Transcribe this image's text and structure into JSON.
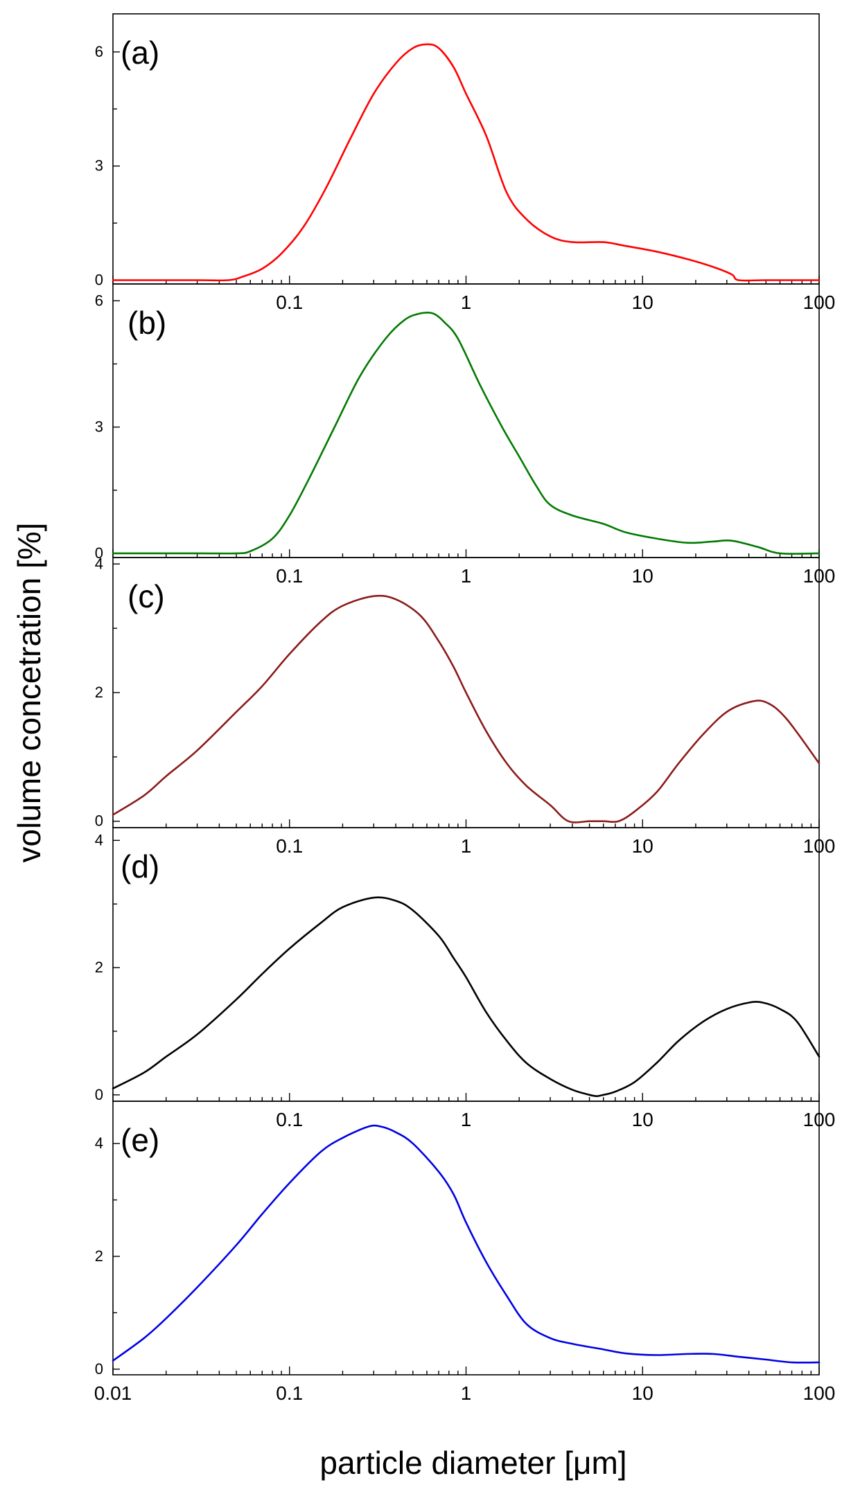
{
  "chart_data": {
    "type": "line",
    "xlabel": "particle diameter [μm]",
    "ylabel": "volume concetration [%]",
    "xscale": "log",
    "xlim": [
      0.01,
      100
    ],
    "x_tick_labels": [
      "0.01",
      "0.1",
      "1",
      "10",
      "100"
    ],
    "panels": [
      {
        "label": "(a)",
        "color": "#ff0000",
        "ylim": [
          -0.1,
          7.0
        ],
        "y_ticks": [
          0,
          3,
          6
        ],
        "y_tick_labels": [
          "0",
          "3",
          "6"
        ],
        "x_tick_labels": [
          "0.1",
          "1",
          "10",
          "100"
        ],
        "x": [
          0.01,
          0.03,
          0.045,
          0.055,
          0.07,
          0.09,
          0.12,
          0.16,
          0.22,
          0.3,
          0.4,
          0.5,
          0.6,
          0.7,
          0.85,
          1.0,
          1.3,
          1.7,
          2.2,
          3.0,
          4.0,
          6.0,
          8.0,
          12.0,
          18.0,
          25.0,
          32.0,
          35.0,
          50.0,
          100.0
        ],
        "y": [
          0,
          0,
          0,
          0.1,
          0.3,
          0.7,
          1.4,
          2.4,
          3.7,
          4.9,
          5.7,
          6.1,
          6.2,
          6.1,
          5.6,
          4.9,
          3.8,
          2.3,
          1.6,
          1.15,
          1.0,
          1.0,
          0.9,
          0.75,
          0.55,
          0.35,
          0.15,
          0,
          0,
          0
        ]
      },
      {
        "label": "(b)",
        "color": "#007a00",
        "ylim": [
          -0.1,
          6.4
        ],
        "y_ticks": [
          0,
          3,
          6
        ],
        "y_tick_labels": [
          "0",
          "3",
          "6"
        ],
        "x_tick_labels": [
          "0.1",
          "1",
          "10",
          "100"
        ],
        "x": [
          0.01,
          0.03,
          0.05,
          0.06,
          0.08,
          0.1,
          0.13,
          0.18,
          0.25,
          0.35,
          0.45,
          0.55,
          0.65,
          0.75,
          0.9,
          1.2,
          1.6,
          2.0,
          2.5,
          3.0,
          4.0,
          6.0,
          8.0,
          12.0,
          18.0,
          25.0,
          32.0,
          45.0,
          60.0,
          100.0
        ],
        "y": [
          0,
          0,
          0,
          0.05,
          0.35,
          0.9,
          1.8,
          3.0,
          4.2,
          5.1,
          5.55,
          5.7,
          5.7,
          5.5,
          5.1,
          4.0,
          3.0,
          2.3,
          1.6,
          1.15,
          0.9,
          0.7,
          0.5,
          0.35,
          0.25,
          0.28,
          0.3,
          0.15,
          0,
          0
        ]
      },
      {
        "label": "(c)",
        "color": "#8b1a1a",
        "ylim": [
          -0.1,
          4.1
        ],
        "y_ticks": [
          0,
          2,
          4
        ],
        "y_tick_labels": [
          "0",
          "2",
          "4"
        ],
        "x_tick_labels": [
          "0.1",
          "1",
          "10",
          "100"
        ],
        "x": [
          0.01,
          0.015,
          0.02,
          0.03,
          0.05,
          0.07,
          0.1,
          0.15,
          0.2,
          0.3,
          0.4,
          0.55,
          0.7,
          0.85,
          1.0,
          1.3,
          1.7,
          2.2,
          3.0,
          3.8,
          5.0,
          6.0,
          7.3,
          9.0,
          12.0,
          16.0,
          22.0,
          30.0,
          40.0,
          50.0,
          65.0,
          100.0
        ],
        "y": [
          0.1,
          0.4,
          0.7,
          1.1,
          1.7,
          2.1,
          2.6,
          3.1,
          3.35,
          3.5,
          3.45,
          3.2,
          2.8,
          2.4,
          2.0,
          1.4,
          0.9,
          0.55,
          0.25,
          0,
          0,
          0,
          0,
          0.15,
          0.45,
          0.9,
          1.35,
          1.7,
          1.85,
          1.85,
          1.6,
          0.9
        ]
      },
      {
        "label": "(d)",
        "color": "#000000",
        "ylim": [
          -0.1,
          4.2
        ],
        "y_ticks": [
          0,
          2,
          4
        ],
        "y_tick_labels": [
          "0",
          "2",
          "4"
        ],
        "x_tick_labels": [
          "0.1",
          "1",
          "10",
          "100"
        ],
        "x": [
          0.01,
          0.015,
          0.02,
          0.03,
          0.05,
          0.07,
          0.1,
          0.15,
          0.2,
          0.3,
          0.4,
          0.5,
          0.7,
          0.85,
          1.0,
          1.3,
          1.7,
          2.2,
          3.0,
          4.0,
          5.0,
          5.5,
          6.0,
          7.0,
          9.0,
          12.0,
          16.0,
          22.0,
          30.0,
          40.0,
          48.0,
          60.0,
          75.0,
          100.0
        ],
        "y": [
          0.1,
          0.35,
          0.6,
          0.95,
          1.5,
          1.9,
          2.3,
          2.7,
          2.95,
          3.1,
          3.05,
          2.9,
          2.5,
          2.15,
          1.85,
          1.3,
          0.85,
          0.5,
          0.25,
          0.08,
          0,
          -0.02,
          0,
          0.05,
          0.2,
          0.5,
          0.85,
          1.15,
          1.35,
          1.45,
          1.45,
          1.35,
          1.15,
          0.6
        ]
      },
      {
        "label": "(e)",
        "color": "#0000e6",
        "ylim": [
          -0.1,
          4.75
        ],
        "y_ticks": [
          0,
          2,
          4
        ],
        "y_tick_labels": [
          "0",
          "2",
          "4"
        ],
        "x_tick_labels": [
          "0.01",
          "0.1",
          "1",
          "10",
          "100"
        ],
        "x": [
          0.01,
          0.015,
          0.02,
          0.03,
          0.05,
          0.07,
          0.1,
          0.15,
          0.2,
          0.28,
          0.33,
          0.4,
          0.5,
          0.7,
          0.85,
          1.0,
          1.3,
          1.7,
          2.2,
          3.0,
          4.0,
          6.0,
          8.0,
          12.0,
          18.0,
          25.0,
          35.0,
          50.0,
          70.0,
          100.0
        ],
        "y": [
          0.15,
          0.55,
          0.9,
          1.45,
          2.2,
          2.75,
          3.3,
          3.85,
          4.1,
          4.3,
          4.3,
          4.2,
          4.0,
          3.5,
          3.1,
          2.6,
          1.9,
          1.3,
          0.8,
          0.55,
          0.45,
          0.35,
          0.28,
          0.25,
          0.27,
          0.27,
          0.22,
          0.17,
          0.12,
          0.12
        ]
      }
    ]
  }
}
